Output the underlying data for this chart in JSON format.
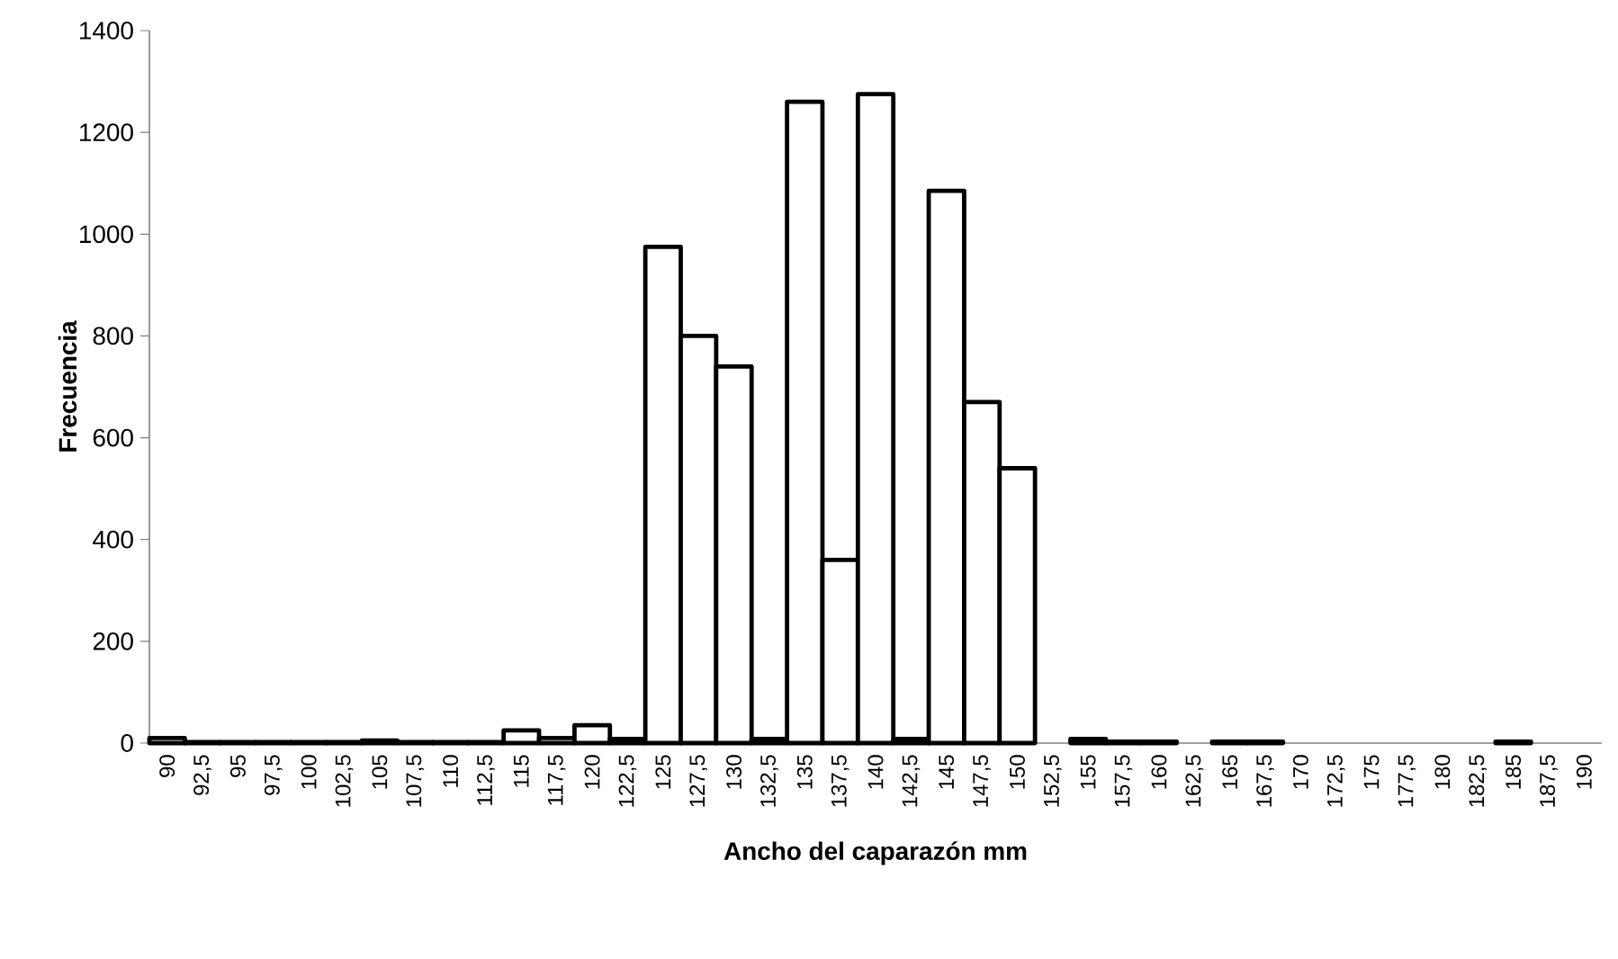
{
  "chart_data": {
    "type": "bar",
    "xlabel": "Ancho del caparazón  mm",
    "ylabel": "Frecuencia",
    "categories": [
      "90",
      "92,5",
      "95",
      "97,5",
      "100",
      "102,5",
      "105",
      "107,5",
      "110",
      "112,5",
      "115",
      "117,5",
      "120",
      "122,5",
      "125",
      "127,5",
      "130",
      "132,5",
      "135",
      "137,5",
      "140",
      "142,5",
      "145",
      "147,5",
      "150",
      "152,5",
      "155",
      "157,5",
      "160",
      "162,5",
      "165",
      "167,5",
      "170",
      "172,5",
      "175",
      "177,5",
      "180",
      "182,5",
      "185",
      "187,5",
      "190"
    ],
    "values": [
      10,
      2,
      2,
      2,
      2,
      2,
      5,
      2,
      2,
      2,
      25,
      10,
      35,
      8,
      975,
      800,
      740,
      8,
      1260,
      360,
      1275,
      8,
      1085,
      670,
      540,
      0,
      8,
      3,
      3,
      0,
      3,
      3,
      0,
      0,
      0,
      0,
      0,
      0,
      3,
      0,
      0
    ],
    "color": "#ffffff",
    "ylim": [
      0,
      1400
    ],
    "yticks": [
      0,
      200,
      400,
      600,
      800,
      1000,
      1200,
      1400
    ],
    "grid": false
  }
}
